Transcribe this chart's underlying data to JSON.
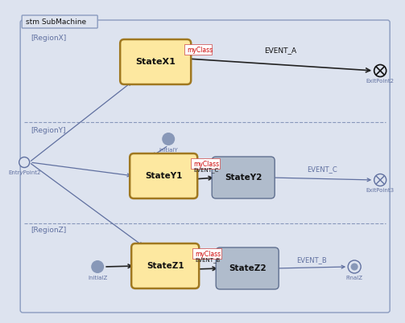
{
  "bg_color": "#dde3ef",
  "border_color": "#8a9bbf",
  "state_fill_active": "#fde8a0",
  "state_fill_inactive": "#b0bccc",
  "state_border_active": "#a07820",
  "state_border_inactive": "#607090",
  "text_black": "#111111",
  "text_blue": "#6070a0",
  "text_red": "#cc0000",
  "arrow_dark": "#222222",
  "arrow_light": "#7080a8",
  "dashed_color": "#8898bb",
  "title": "stm SubMachine",
  "regionX": "[RegionX]",
  "regionY": "[RegionY]",
  "regionZ": "[RegionZ]",
  "lbl_stateX1": "StateX1",
  "lbl_stateY1": "StateY1",
  "lbl_stateY2": "StateY2",
  "lbl_stateZ1": "StateZ1",
  "lbl_stateZ2": "StateZ2",
  "lbl_myClass": "myClass",
  "lbl_initialY": "InitialY",
  "lbl_initialZ": "InitialZ",
  "lbl_entry2": "EntryPoint2",
  "lbl_exit2": "ExitPoint2",
  "lbl_exit3": "ExitPoint3",
  "lbl_finalZ": "FinalZ",
  "lbl_eventA": "EVENT_A",
  "lbl_eventB": "EVENT_B",
  "lbl_eventC": "EVENT_C",
  "lbl_eventC2": "EVENT_C",
  "lbl_eventC_tr": "EVENT_C",
  "lbl_eventB_tr": "EVENT_B",
  "lbl_eventC_ann": "EVENT_C",
  "lbl_eventB_ann": "EVENT_B"
}
